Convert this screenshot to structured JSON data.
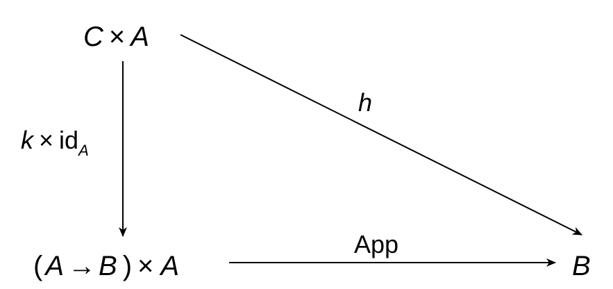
{
  "nodes": {
    "top_left": {
      "object": "C",
      "times": "×",
      "factor": "A"
    },
    "bottom_left": {
      "open_paren": "(",
      "domain": "A",
      "arrow": "→",
      "codomain": "B",
      "close_paren": ")",
      "times": "×",
      "factor": "A"
    },
    "bottom_right": {
      "object": "B"
    }
  },
  "arrows": {
    "diagonal": {
      "label": "h"
    },
    "vertical": {
      "label_map": "k",
      "label_times": "×",
      "label_id": "id",
      "label_subscript": "A"
    },
    "horizontal": {
      "label": "App"
    }
  },
  "colors": {
    "ink": "#000000",
    "background": "#ffffff"
  }
}
